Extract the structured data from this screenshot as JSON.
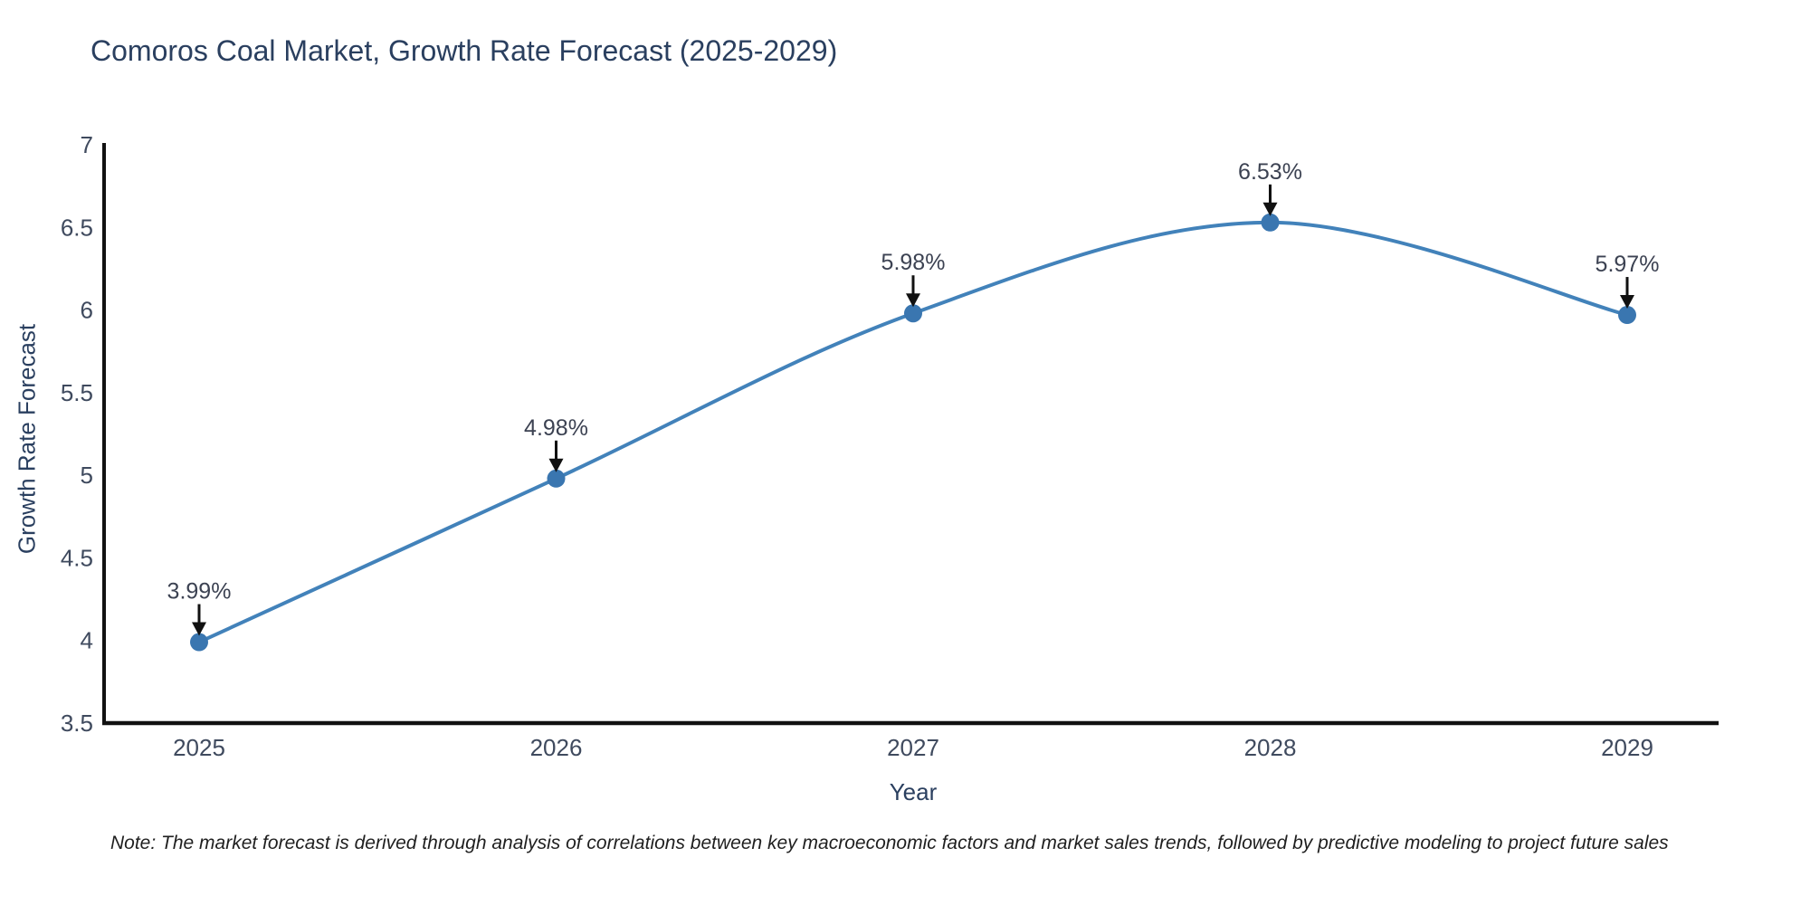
{
  "title": "Comoros Coal Market, Growth Rate Forecast (2025-2029)",
  "note": "Note: The market forecast is derived through analysis of correlations between key macroeconomic factors and market sales trends, followed by predictive modeling to project future sales",
  "chart_data": {
    "type": "line",
    "line_shape": "spline",
    "markers": true,
    "grid": false,
    "legend": "none",
    "title": "Comoros Coal Market, Growth Rate Forecast (2025-2029)",
    "xlabel": "Year",
    "ylabel": "Growth Rate Forecast",
    "categories": [
      "2025",
      "2026",
      "2027",
      "2028",
      "2029"
    ],
    "values": [
      3.99,
      4.98,
      5.98,
      6.53,
      5.97
    ],
    "annotations": [
      "3.99%",
      "4.98%",
      "5.98%",
      "6.53%",
      "5.97%"
    ],
    "ylim": [
      3.5,
      7
    ],
    "yticks": [
      3.5,
      4,
      4.5,
      5,
      5.5,
      6,
      6.5,
      7
    ],
    "colors": {
      "line": "#4282ba",
      "marker": "#3a76b0",
      "axis": "#111111",
      "arrow": "#111111",
      "tick_text": "#3f4a5e",
      "annotation_text": "#3c4252"
    }
  }
}
